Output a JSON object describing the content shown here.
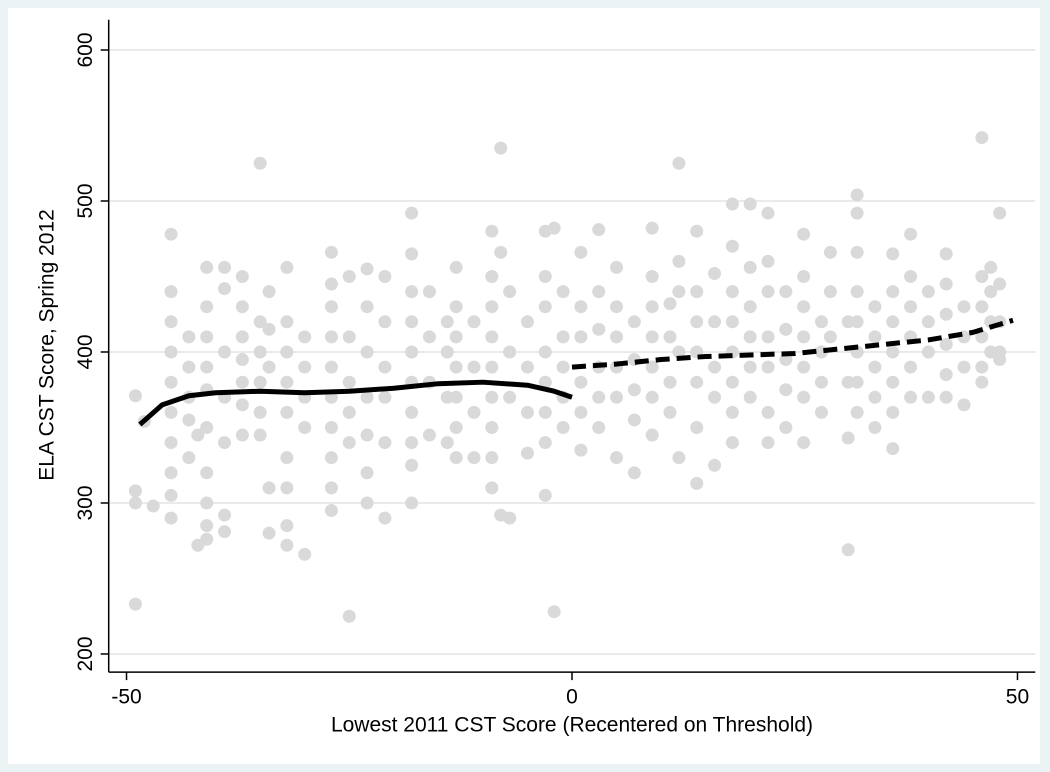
{
  "chart_data": {
    "type": "scatter",
    "x_label": "Lowest 2011 CST Score (Recentered on Threshold)",
    "y_label": "ELA CST Score, Spring 2012",
    "xlim": [
      -52,
      52
    ],
    "ylim": [
      188,
      620
    ],
    "xticks": [
      -50,
      0,
      50
    ],
    "yticks": [
      200,
      300,
      400,
      500,
      600
    ],
    "grid": true,
    "points": {
      "color": "#d9d9d9",
      "x": [
        -49,
        -49,
        -49,
        -49,
        -48,
        -47,
        -45,
        -45,
        -45,
        -45,
        -45,
        -45,
        -45,
        -45,
        -45,
        -45,
        -43,
        -43,
        -43,
        -43,
        -43,
        -42,
        -42,
        -41,
        -41,
        -41,
        -41,
        -41,
        -41,
        -41,
        -41,
        -41,
        -41,
        -39,
        -39,
        -39,
        -39,
        -39,
        -39,
        -39,
        -37,
        -37,
        -37,
        -37,
        -37,
        -37,
        -37,
        -35,
        -35,
        -35,
        -35,
        -35,
        -35,
        -34,
        -34,
        -34,
        -34,
        -34,
        -32,
        -32,
        -32,
        -32,
        -32,
        -32,
        -32,
        -32,
        -32,
        -30,
        -30,
        -30,
        -30,
        -30,
        -27,
        -27,
        -27,
        -27,
        -27,
        -27,
        -27,
        -27,
        -27,
        -27,
        -25,
        -25,
        -25,
        -25,
        -25,
        -25,
        -23,
        -23,
        -23,
        -23,
        -23,
        -23,
        -23,
        -21,
        -21,
        -21,
        -21,
        -21,
        -21,
        -18,
        -18,
        -18,
        -18,
        -18,
        -18,
        -18,
        -18,
        -18,
        -18,
        -16,
        -16,
        -16,
        -16,
        -14,
        -14,
        -14,
        -14,
        -13,
        -13,
        -13,
        -13,
        -13,
        -13,
        -13,
        -11,
        -11,
        -11,
        -11,
        -9,
        -9,
        -9,
        -9,
        -9,
        -9,
        -9,
        -9,
        -9,
        -8,
        -8,
        -8,
        -7,
        -7,
        -7,
        -7,
        -5,
        -5,
        -5,
        -5,
        -3,
        -3,
        -3,
        -3,
        -3,
        -3,
        -3,
        -3,
        -2,
        -2,
        -1,
        -1,
        -1,
        -1,
        -1,
        1,
        1,
        1,
        1,
        1,
        1,
        3,
        3,
        3,
        3,
        3,
        3,
        5,
        5,
        5,
        5,
        5,
        5,
        7,
        7,
        7,
        7,
        7,
        9,
        9,
        9,
        9,
        9,
        9,
        9,
        11,
        11,
        11,
        11,
        12,
        12,
        12,
        12,
        12,
        14,
        14,
        14,
        14,
        14,
        14,
        14,
        16,
        16,
        16,
        16,
        16,
        18,
        18,
        18,
        18,
        18,
        18,
        18,
        18,
        20,
        20,
        20,
        20,
        20,
        20,
        22,
        22,
        22,
        22,
        22,
        22,
        22,
        24,
        24,
        24,
        24,
        24,
        26,
        26,
        26,
        26,
        26,
        26,
        26,
        28,
        28,
        28,
        28,
        29,
        29,
        29,
        31,
        31,
        31,
        31,
        32,
        32,
        32,
        32,
        32,
        32,
        32,
        32,
        34,
        34,
        34,
        34,
        34,
        36,
        36,
        36,
        36,
        36,
        36,
        36,
        38,
        38,
        38,
        38,
        38,
        38,
        40,
        40,
        40,
        40,
        42,
        42,
        42,
        42,
        42,
        42,
        44,
        44,
        44,
        44,
        46,
        46,
        46,
        46,
        46,
        46,
        47,
        47,
        47,
        47,
        48,
        48,
        48,
        48,
        48
      ],
      "y": [
        233,
        308,
        300,
        371,
        354,
        298,
        478,
        440,
        420,
        400,
        380,
        360,
        340,
        320,
        305,
        290,
        410,
        390,
        370,
        355,
        330,
        272,
        345,
        456,
        430,
        410,
        390,
        375,
        350,
        320,
        300,
        285,
        276,
        456,
        442,
        400,
        370,
        340,
        292,
        281,
        450,
        430,
        410,
        395,
        380,
        365,
        345,
        525,
        420,
        400,
        380,
        360,
        345,
        440,
        415,
        390,
        310,
        280,
        456,
        420,
        400,
        380,
        360,
        330,
        310,
        285,
        272,
        410,
        390,
        370,
        350,
        266,
        466,
        445,
        430,
        410,
        390,
        370,
        350,
        330,
        310,
        295,
        450,
        410,
        380,
        360,
        340,
        225,
        455,
        430,
        400,
        370,
        345,
        320,
        300,
        450,
        420,
        390,
        370,
        340,
        290,
        492,
        465,
        440,
        420,
        400,
        380,
        360,
        340,
        325,
        300,
        440,
        410,
        380,
        345,
        420,
        400,
        370,
        340,
        456,
        430,
        410,
        390,
        370,
        350,
        330,
        420,
        390,
        360,
        330,
        480,
        450,
        430,
        410,
        390,
        370,
        350,
        330,
        310,
        535,
        466,
        292,
        290,
        440,
        400,
        370,
        420,
        390,
        360,
        333,
        480,
        450,
        430,
        400,
        380,
        360,
        340,
        305,
        228,
        482,
        440,
        410,
        390,
        370,
        350,
        466,
        430,
        410,
        380,
        360,
        335,
        481,
        440,
        415,
        390,
        370,
        350,
        456,
        430,
        410,
        390,
        370,
        330,
        420,
        395,
        375,
        355,
        320,
        482,
        450,
        430,
        410,
        390,
        370,
        345,
        432,
        410,
        380,
        360,
        525,
        460,
        440,
        400,
        330,
        480,
        440,
        420,
        400,
        380,
        350,
        313,
        452,
        420,
        390,
        370,
        325,
        498,
        470,
        440,
        420,
        400,
        380,
        360,
        340,
        498,
        456,
        430,
        410,
        390,
        370,
        492,
        460,
        440,
        410,
        390,
        360,
        340,
        440,
        415,
        395,
        375,
        350,
        478,
        450,
        430,
        410,
        390,
        370,
        340,
        420,
        400,
        380,
        360,
        466,
        440,
        410,
        269,
        343,
        380,
        420,
        504,
        492,
        466,
        440,
        420,
        400,
        380,
        360,
        430,
        410,
        390,
        370,
        350,
        465,
        440,
        420,
        400,
        380,
        360,
        336,
        478,
        450,
        430,
        410,
        390,
        370,
        440,
        420,
        400,
        370,
        465,
        445,
        425,
        405,
        385,
        370,
        430,
        410,
        390,
        365,
        542,
        450,
        430,
        410,
        390,
        380,
        456,
        440,
        420,
        400,
        492,
        445,
        420,
        400,
        395
      ]
    },
    "lines": [
      {
        "color": "#000000",
        "style": "solid",
        "x": [
          -48.5,
          -46,
          -43,
          -40,
          -35,
          -30,
          -25,
          -20,
          -15,
          -10,
          -5,
          -2,
          0
        ],
        "y": [
          352,
          365,
          371,
          373,
          374,
          373,
          374,
          376,
          379,
          380,
          378,
          374,
          370
        ]
      },
      {
        "color": "#000000",
        "style": "dashed",
        "x": [
          0,
          5,
          10,
          15,
          20,
          25,
          30,
          35,
          40,
          45,
          49.5
        ],
        "y": [
          390,
          392,
          395,
          397,
          398,
          399,
          402,
          405,
          408,
          413,
          421
        ]
      }
    ]
  }
}
